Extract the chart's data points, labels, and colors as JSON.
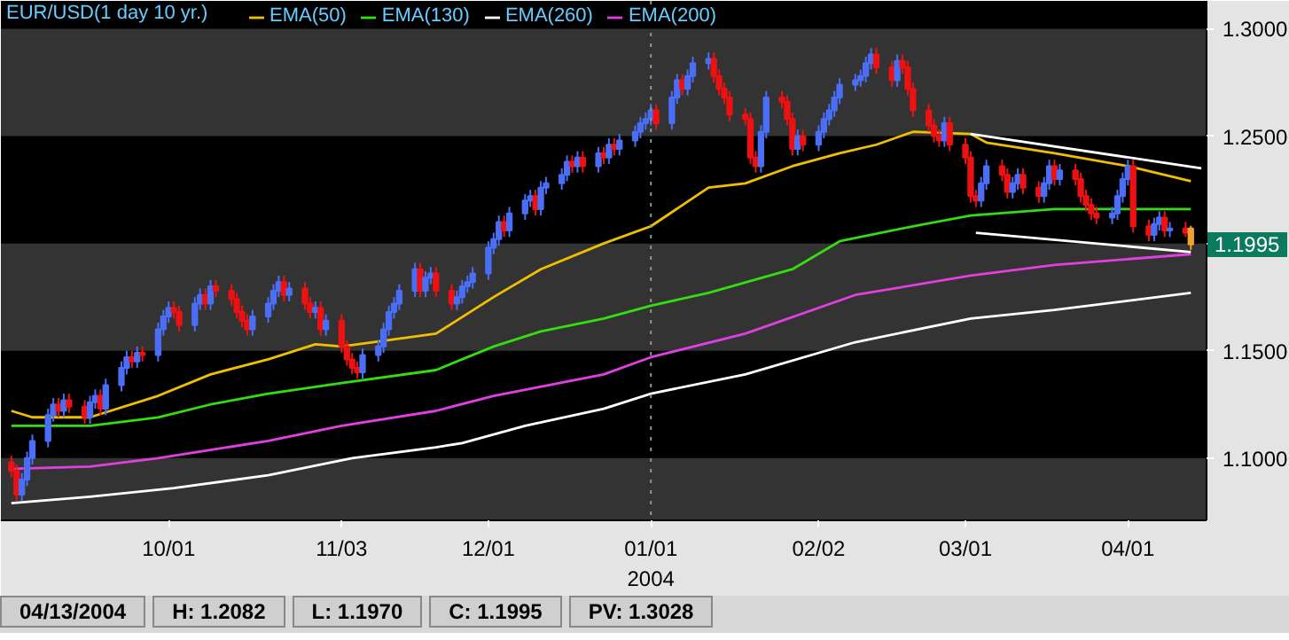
{
  "chart_data": {
    "type": "candlestick",
    "title": "EUR/USD(1 day  10 yr.)",
    "legend": "top left",
    "bands": [
      {
        "axis": "y",
        "from": 1.071,
        "to": 1.1,
        "color": "#333333"
      },
      {
        "axis": "y",
        "from": 1.15,
        "to": 1.2,
        "color": "#333333"
      },
      {
        "axis": "y",
        "from": 1.25,
        "to": 1.3,
        "color": "#333333"
      }
    ],
    "x": [
      "2003-09-01",
      "2003-09-02",
      "2003-09-03",
      "2003-09-04",
      "2003-09-05",
      "2003-09-08",
      "2003-09-09",
      "2003-09-10",
      "2003-09-11",
      "2003-09-12",
      "2003-09-15",
      "2003-09-16",
      "2003-09-17",
      "2003-09-18",
      "2003-09-19",
      "2003-09-22",
      "2003-09-23",
      "2003-09-24",
      "2003-09-25",
      "2003-09-26",
      "2003-09-29",
      "2003-09-30",
      "2003-10-01",
      "2003-10-02",
      "2003-10-03",
      "2003-10-06",
      "2003-10-07",
      "2003-10-08",
      "2003-10-09",
      "2003-10-10",
      "2003-10-13",
      "2003-10-14",
      "2003-10-15",
      "2003-10-16",
      "2003-10-17",
      "2003-10-20",
      "2003-10-21",
      "2003-10-22",
      "2003-10-23",
      "2003-10-24",
      "2003-10-27",
      "2003-10-28",
      "2003-10-29",
      "2003-10-30",
      "2003-10-31",
      "2003-11-03",
      "2003-11-04",
      "2003-11-05",
      "2003-11-06",
      "2003-11-07",
      "2003-11-10",
      "2003-11-11",
      "2003-11-12",
      "2003-11-13",
      "2003-11-14",
      "2003-11-17",
      "2003-11-18",
      "2003-11-19",
      "2003-11-20",
      "2003-11-21",
      "2003-11-24",
      "2003-11-25",
      "2003-11-26",
      "2003-11-27",
      "2003-11-28",
      "2003-12-01",
      "2003-12-02",
      "2003-12-03",
      "2003-12-04",
      "2003-12-05",
      "2003-12-08",
      "2003-12-09",
      "2003-12-10",
      "2003-12-11",
      "2003-12-12",
      "2003-12-15",
      "2003-12-16",
      "2003-12-17",
      "2003-12-18",
      "2003-12-19",
      "2003-12-22",
      "2003-12-23",
      "2003-12-24",
      "2003-12-25",
      "2003-12-26",
      "2003-12-29",
      "2003-12-30",
      "2003-12-31",
      "2004-01-01",
      "2004-01-02",
      "2004-01-05",
      "2004-01-06",
      "2004-01-07",
      "2004-01-08",
      "2004-01-09",
      "2004-01-12",
      "2004-01-13",
      "2004-01-14",
      "2004-01-15",
      "2004-01-16",
      "2004-01-19",
      "2004-01-20",
      "2004-01-21",
      "2004-01-22",
      "2004-01-23",
      "2004-01-26",
      "2004-01-27",
      "2004-01-28",
      "2004-01-29",
      "2004-01-30",
      "2004-02-02",
      "2004-02-03",
      "2004-02-04",
      "2004-02-05",
      "2004-02-06",
      "2004-02-09",
      "2004-02-10",
      "2004-02-11",
      "2004-02-12",
      "2004-02-13",
      "2004-02-16",
      "2004-02-17",
      "2004-02-18",
      "2004-02-19",
      "2004-02-20",
      "2004-02-23",
      "2004-02-24",
      "2004-02-25",
      "2004-02-26",
      "2004-02-27",
      "2004-03-01",
      "2004-03-02",
      "2004-03-03",
      "2004-03-04",
      "2004-03-05",
      "2004-03-08",
      "2004-03-09",
      "2004-03-10",
      "2004-03-11",
      "2004-03-12",
      "2004-03-15",
      "2004-03-16",
      "2004-03-17",
      "2004-03-18",
      "2004-03-19",
      "2004-03-22",
      "2004-03-23",
      "2004-03-24",
      "2004-03-25",
      "2004-03-26",
      "2004-03-29",
      "2004-03-30",
      "2004-03-31",
      "2004-04-01",
      "2004-04-02",
      "2004-04-05",
      "2004-04-06",
      "2004-04-07",
      "2004-04-08",
      "2004-04-09",
      "2004-04-12",
      "2004-04-13"
    ],
    "ohlc": [
      [
        1.098,
        1.101,
        1.091,
        1.094
      ],
      [
        1.094,
        1.097,
        1.08,
        1.083
      ],
      [
        1.083,
        1.093,
        1.08,
        1.09
      ],
      [
        1.09,
        1.103,
        1.087,
        1.1
      ],
      [
        1.1,
        1.111,
        1.097,
        1.108
      ],
      [
        1.108,
        1.123,
        1.105,
        1.12
      ],
      [
        1.12,
        1.128,
        1.117,
        1.125
      ],
      [
        1.125,
        1.128,
        1.119,
        1.122
      ],
      [
        1.122,
        1.13,
        1.119,
        1.127
      ],
      [
        1.127,
        1.13,
        1.121,
        1.124
      ],
      [
        1.124,
        1.127,
        1.116,
        1.119
      ],
      [
        1.119,
        1.129,
        1.116,
        1.126
      ],
      [
        1.126,
        1.132,
        1.123,
        1.129
      ],
      [
        1.129,
        1.132,
        1.12,
        1.123
      ],
      [
        1.123,
        1.137,
        1.12,
        1.134
      ],
      [
        1.134,
        1.145,
        1.131,
        1.142
      ],
      [
        1.142,
        1.15,
        1.139,
        1.147
      ],
      [
        1.147,
        1.15,
        1.142,
        1.145
      ],
      [
        1.145,
        1.152,
        1.142,
        1.149
      ],
      [
        1.149,
        1.152,
        1.145,
        1.148
      ],
      [
        1.148,
        1.163,
        1.145,
        1.16
      ],
      [
        1.16,
        1.169,
        1.157,
        1.166
      ],
      [
        1.166,
        1.173,
        1.163,
        1.17
      ],
      [
        1.17,
        1.173,
        1.165,
        1.168
      ],
      [
        1.168,
        1.171,
        1.159,
        1.162
      ],
      [
        1.162,
        1.175,
        1.159,
        1.172
      ],
      [
        1.172,
        1.179,
        1.169,
        1.176
      ],
      [
        1.176,
        1.179,
        1.169,
        1.172
      ],
      [
        1.172,
        1.183,
        1.169,
        1.18
      ],
      [
        1.18,
        1.183,
        1.175,
        1.178
      ],
      [
        1.178,
        1.181,
        1.171,
        1.174
      ],
      [
        1.174,
        1.177,
        1.165,
        1.168
      ],
      [
        1.168,
        1.171,
        1.161,
        1.164
      ],
      [
        1.164,
        1.167,
        1.157,
        1.16
      ],
      [
        1.16,
        1.169,
        1.157,
        1.166
      ],
      [
        1.166,
        1.175,
        1.163,
        1.172
      ],
      [
        1.172,
        1.181,
        1.169,
        1.178
      ],
      [
        1.178,
        1.185,
        1.175,
        1.182
      ],
      [
        1.182,
        1.185,
        1.173,
        1.176
      ],
      [
        1.176,
        1.182,
        1.173,
        1.179
      ],
      [
        1.179,
        1.182,
        1.169,
        1.172
      ],
      [
        1.172,
        1.175,
        1.165,
        1.168
      ],
      [
        1.168,
        1.173,
        1.165,
        1.17
      ],
      [
        1.17,
        1.173,
        1.157,
        1.16
      ],
      [
        1.16,
        1.167,
        1.157,
        1.164
      ],
      [
        1.164,
        1.167,
        1.149,
        1.152
      ],
      [
        1.152,
        1.155,
        1.143,
        1.146
      ],
      [
        1.146,
        1.149,
        1.139,
        1.142
      ],
      [
        1.142,
        1.145,
        1.137,
        1.14
      ],
      [
        1.14,
        1.151,
        1.137,
        1.148
      ],
      [
        1.148,
        1.155,
        1.145,
        1.152
      ],
      [
        1.152,
        1.163,
        1.149,
        1.16
      ],
      [
        1.16,
        1.171,
        1.157,
        1.168
      ],
      [
        1.168,
        1.175,
        1.165,
        1.172
      ],
      [
        1.172,
        1.181,
        1.169,
        1.178
      ],
      [
        1.178,
        1.191,
        1.175,
        1.188
      ],
      [
        1.188,
        1.191,
        1.175,
        1.178
      ],
      [
        1.178,
        1.187,
        1.175,
        1.184
      ],
      [
        1.184,
        1.189,
        1.181,
        1.186
      ],
      [
        1.186,
        1.189,
        1.175,
        1.178
      ],
      [
        1.178,
        1.181,
        1.169,
        1.172
      ],
      [
        1.172,
        1.178,
        1.169,
        1.175
      ],
      [
        1.175,
        1.183,
        1.172,
        1.18
      ],
      [
        1.18,
        1.185,
        1.177,
        1.182
      ],
      [
        1.182,
        1.189,
        1.179,
        1.186
      ],
      [
        1.186,
        1.201,
        1.183,
        1.198
      ],
      [
        1.198,
        1.205,
        1.195,
        1.202
      ],
      [
        1.202,
        1.213,
        1.199,
        1.21
      ],
      [
        1.21,
        1.213,
        1.203,
        1.206
      ],
      [
        1.206,
        1.217,
        1.203,
        1.214
      ],
      [
        1.214,
        1.223,
        1.211,
        1.22
      ],
      [
        1.22,
        1.225,
        1.217,
        1.222
      ],
      [
        1.222,
        1.225,
        1.213,
        1.216
      ],
      [
        1.216,
        1.229,
        1.213,
        1.226
      ],
      [
        1.226,
        1.231,
        1.223,
        1.228
      ],
      [
        1.228,
        1.235,
        1.225,
        1.232
      ],
      [
        1.232,
        1.241,
        1.229,
        1.238
      ],
      [
        1.238,
        1.241,
        1.233,
        1.236
      ],
      [
        1.236,
        1.243,
        1.233,
        1.24
      ],
      [
        1.24,
        1.243,
        1.233,
        1.236
      ],
      [
        1.236,
        1.245,
        1.233,
        1.242
      ],
      [
        1.242,
        1.245,
        1.237,
        1.24
      ],
      [
        1.24,
        1.249,
        1.237,
        1.246
      ],
      [
        1.246,
        1.249,
        1.241,
        1.244
      ],
      [
        1.244,
        1.251,
        1.241,
        1.248
      ],
      [
        1.248,
        1.255,
        1.245,
        1.252
      ],
      [
        1.252,
        1.259,
        1.249,
        1.256
      ],
      [
        1.256,
        1.261,
        1.253,
        1.258
      ],
      [
        1.258,
        1.265,
        1.255,
        1.262
      ],
      [
        1.262,
        1.265,
        1.253,
        1.256
      ],
      [
        1.256,
        1.271,
        1.253,
        1.268
      ],
      [
        1.268,
        1.279,
        1.265,
        1.276
      ],
      [
        1.276,
        1.279,
        1.269,
        1.272
      ],
      [
        1.272,
        1.281,
        1.269,
        1.278
      ],
      [
        1.278,
        1.287,
        1.275,
        1.284
      ],
      [
        1.284,
        1.289,
        1.281,
        1.286
      ],
      [
        1.286,
        1.289,
        1.275,
        1.278
      ],
      [
        1.278,
        1.281,
        1.269,
        1.272
      ],
      [
        1.272,
        1.275,
        1.265,
        1.268
      ],
      [
        1.268,
        1.271,
        1.257,
        1.26
      ],
      [
        1.26,
        1.263,
        1.255,
        1.258
      ],
      [
        1.258,
        1.261,
        1.237,
        1.24
      ],
      [
        1.24,
        1.243,
        1.233,
        1.236
      ],
      [
        1.236,
        1.255,
        1.233,
        1.252
      ],
      [
        1.252,
        1.271,
        1.249,
        1.268
      ],
      [
        1.268,
        1.271,
        1.263,
        1.266
      ],
      [
        1.266,
        1.269,
        1.255,
        1.258
      ],
      [
        1.258,
        1.261,
        1.241,
        1.244
      ],
      [
        1.244,
        1.253,
        1.241,
        1.25
      ],
      [
        1.25,
        1.253,
        1.243,
        1.246
      ],
      [
        1.246,
        1.255,
        1.243,
        1.252
      ],
      [
        1.252,
        1.261,
        1.249,
        1.258
      ],
      [
        1.258,
        1.265,
        1.255,
        1.262
      ],
      [
        1.262,
        1.271,
        1.259,
        1.268
      ],
      [
        1.268,
        1.277,
        1.265,
        1.274
      ],
      [
        1.274,
        1.279,
        1.271,
        1.276
      ],
      [
        1.276,
        1.281,
        1.273,
        1.278
      ],
      [
        1.278,
        1.287,
        1.275,
        1.284
      ],
      [
        1.284,
        1.291,
        1.281,
        1.288
      ],
      [
        1.288,
        1.291,
        1.279,
        1.282
      ],
      [
        1.282,
        1.285,
        1.273,
        1.276
      ],
      [
        1.276,
        1.288,
        1.273,
        1.285
      ],
      [
        1.285,
        1.288,
        1.279,
        1.282
      ],
      [
        1.282,
        1.285,
        1.269,
        1.272
      ],
      [
        1.272,
        1.275,
        1.259,
        1.262
      ],
      [
        1.262,
        1.265,
        1.252,
        1.255
      ],
      [
        1.255,
        1.258,
        1.247,
        1.25
      ],
      [
        1.25,
        1.253,
        1.245,
        1.248
      ],
      [
        1.248,
        1.259,
        1.245,
        1.256
      ],
      [
        1.256,
        1.259,
        1.243,
        1.246
      ],
      [
        1.246,
        1.249,
        1.237,
        1.24
      ],
      [
        1.24,
        1.243,
        1.219,
        1.222
      ],
      [
        1.222,
        1.225,
        1.217,
        1.22
      ],
      [
        1.22,
        1.231,
        1.217,
        1.228
      ],
      [
        1.228,
        1.239,
        1.225,
        1.236
      ],
      [
        1.236,
        1.239,
        1.229,
        1.232
      ],
      [
        1.232,
        1.235,
        1.221,
        1.224
      ],
      [
        1.224,
        1.231,
        1.221,
        1.228
      ],
      [
        1.228,
        1.235,
        1.225,
        1.232
      ],
      [
        1.232,
        1.235,
        1.223,
        1.226
      ],
      [
        1.226,
        1.229,
        1.219,
        1.222
      ],
      [
        1.222,
        1.231,
        1.219,
        1.228
      ],
      [
        1.228,
        1.239,
        1.225,
        1.236
      ],
      [
        1.236,
        1.239,
        1.227,
        1.23
      ],
      [
        1.23,
        1.237,
        1.227,
        1.234
      ],
      [
        1.234,
        1.237,
        1.227,
        1.23
      ],
      [
        1.23,
        1.233,
        1.219,
        1.222
      ],
      [
        1.222,
        1.225,
        1.215,
        1.218
      ],
      [
        1.218,
        1.221,
        1.211,
        1.214
      ],
      [
        1.214,
        1.217,
        1.209,
        1.212
      ],
      [
        1.212,
        1.217,
        1.209,
        1.214
      ],
      [
        1.214,
        1.225,
        1.211,
        1.222
      ],
      [
        1.222,
        1.233,
        1.219,
        1.23
      ],
      [
        1.23,
        1.239,
        1.227,
        1.236
      ],
      [
        1.236,
        1.239,
        1.205,
        1.208
      ],
      [
        1.208,
        1.211,
        1.201,
        1.204
      ],
      [
        1.204,
        1.212,
        1.201,
        1.209
      ],
      [
        1.209,
        1.215,
        1.206,
        1.212
      ],
      [
        1.212,
        1.215,
        1.203,
        1.206
      ],
      [
        1.206,
        1.21,
        1.203,
        1.207
      ],
      [
        1.207,
        1.21,
        1.203,
        1.205
      ],
      [
        1.207,
        1.2082,
        1.197,
        1.1995
      ]
    ],
    "colors": [
      "#ee1111",
      "#ee1111",
      "#4a6ef5",
      "#4a6ef5",
      "#4a6ef5",
      "#4a6ef5",
      "#4a6ef5",
      "#ee1111",
      "#4a6ef5",
      "#ee1111",
      "#ee1111",
      "#4a6ef5",
      "#4a6ef5",
      "#ee1111",
      "#4a6ef5",
      "#4a6ef5",
      "#4a6ef5",
      "#ee1111",
      "#4a6ef5",
      "#ee1111",
      "#4a6ef5",
      "#4a6ef5",
      "#4a6ef5",
      "#ee1111",
      "#ee1111",
      "#4a6ef5",
      "#4a6ef5",
      "#ee1111",
      "#4a6ef5",
      "#ee1111",
      "#ee1111",
      "#ee1111",
      "#ee1111",
      "#ee1111",
      "#4a6ef5",
      "#4a6ef5",
      "#4a6ef5",
      "#4a6ef5",
      "#ee1111",
      "#4a6ef5",
      "#ee1111",
      "#ee1111",
      "#4a6ef5",
      "#ee1111",
      "#4a6ef5",
      "#ee1111",
      "#ee1111",
      "#ee1111",
      "#ee1111",
      "#4a6ef5",
      "#4a6ef5",
      "#4a6ef5",
      "#4a6ef5",
      "#4a6ef5",
      "#4a6ef5",
      "#4a6ef5",
      "#ee1111",
      "#4a6ef5",
      "#4a6ef5",
      "#ee1111",
      "#ee1111",
      "#4a6ef5",
      "#4a6ef5",
      "#4a6ef5",
      "#4a6ef5",
      "#4a6ef5",
      "#4a6ef5",
      "#4a6ef5",
      "#ee1111",
      "#4a6ef5",
      "#4a6ef5",
      "#4a6ef5",
      "#ee1111",
      "#4a6ef5",
      "#4a6ef5",
      "#4a6ef5",
      "#4a6ef5",
      "#ee1111",
      "#4a6ef5",
      "#ee1111",
      "#4a6ef5",
      "#ee1111",
      "#4a6ef5",
      "#ee1111",
      "#4a6ef5",
      "#4a6ef5",
      "#4a6ef5",
      "#4a6ef5",
      "#4a6ef5",
      "#ee1111",
      "#4a6ef5",
      "#4a6ef5",
      "#ee1111",
      "#4a6ef5",
      "#4a6ef5",
      "#4a6ef5",
      "#ee1111",
      "#ee1111",
      "#ee1111",
      "#ee1111",
      "#ee1111",
      "#ee1111",
      "#ee1111",
      "#4a6ef5",
      "#4a6ef5",
      "#ee1111",
      "#ee1111",
      "#ee1111",
      "#4a6ef5",
      "#ee1111",
      "#4a6ef5",
      "#4a6ef5",
      "#4a6ef5",
      "#4a6ef5",
      "#4a6ef5",
      "#4a6ef5",
      "#4a6ef5",
      "#4a6ef5",
      "#4a6ef5",
      "#ee1111",
      "#ee1111",
      "#4a6ef5",
      "#ee1111",
      "#ee1111",
      "#ee1111",
      "#ee1111",
      "#ee1111",
      "#ee1111",
      "#4a6ef5",
      "#ee1111",
      "#ee1111",
      "#ee1111",
      "#ee1111",
      "#4a6ef5",
      "#4a6ef5",
      "#ee1111",
      "#ee1111",
      "#4a6ef5",
      "#4a6ef5",
      "#ee1111",
      "#ee1111",
      "#4a6ef5",
      "#4a6ef5",
      "#ee1111",
      "#4a6ef5",
      "#ee1111",
      "#ee1111",
      "#ee1111",
      "#ee1111",
      "#ee1111",
      "#4a6ef5",
      "#4a6ef5",
      "#4a6ef5",
      "#4a6ef5",
      "#ee1111",
      "#ee1111",
      "#4a6ef5",
      "#4a6ef5",
      "#ee1111",
      "#4a6ef5",
      "#ee1111",
      "#f0a030"
    ],
    "series": [
      {
        "name": "EMA(50)",
        "type": "line",
        "color": "#f0c000",
        "x": [
          "2003-09-01",
          "2003-09-05",
          "2003-09-16",
          "2003-09-29",
          "2003-10-09",
          "2003-10-20",
          "2003-10-29",
          "2003-11-03",
          "2003-11-12",
          "2003-11-21",
          "2003-12-02",
          "2003-12-11",
          "2003-12-23",
          "2004-01-01",
          "2004-01-12",
          "2004-01-19",
          "2004-01-28",
          "2004-02-06",
          "2004-02-13",
          "2004-02-20",
          "2004-03-02",
          "2004-03-05",
          "2004-03-18",
          "2004-04-01",
          "2004-04-13"
        ],
        "values": [
          1.122,
          1.119,
          1.119,
          1.129,
          1.139,
          1.146,
          1.153,
          1.152,
          1.155,
          1.158,
          1.175,
          1.188,
          1.2,
          1.208,
          1.226,
          1.228,
          1.236,
          1.242,
          1.246,
          1.252,
          1.251,
          1.247,
          1.242,
          1.236,
          1.229
        ]
      },
      {
        "name": "EMA(130)",
        "type": "line",
        "color": "#33dd11",
        "x": [
          "2003-09-01",
          "2003-09-08",
          "2003-09-16",
          "2003-09-29",
          "2003-10-09",
          "2003-10-20",
          "2003-11-03",
          "2003-11-21",
          "2003-12-02",
          "2003-12-11",
          "2003-12-23",
          "2004-01-01",
          "2004-01-12",
          "2004-01-28",
          "2004-02-06",
          "2004-02-20",
          "2004-03-02",
          "2004-03-18",
          "2004-04-13"
        ],
        "values": [
          1.115,
          1.115,
          1.115,
          1.119,
          1.125,
          1.13,
          1.135,
          1.141,
          1.152,
          1.159,
          1.165,
          1.171,
          1.177,
          1.188,
          1.201,
          1.208,
          1.213,
          1.216,
          1.216
        ]
      },
      {
        "name": "EMA(260)",
        "type": "line",
        "color": "#ffffff",
        "x": [
          "2003-09-01",
          "2003-09-16",
          "2003-10-02",
          "2003-10-20",
          "2003-11-05",
          "2003-11-21",
          "2003-11-26",
          "2003-12-08",
          "2003-12-23",
          "2004-01-01",
          "2004-01-19",
          "2004-02-09",
          "2004-03-02",
          "2004-03-18",
          "2004-04-13"
        ],
        "values": [
          1.079,
          1.082,
          1.086,
          1.092,
          1.1,
          1.105,
          1.107,
          1.115,
          1.123,
          1.13,
          1.139,
          1.154,
          1.165,
          1.169,
          1.177
        ]
      },
      {
        "name": "EMA(200)",
        "type": "line",
        "color": "#e040e0",
        "x": [
          "2003-09-01",
          "2003-09-16",
          "2003-09-29",
          "2003-10-20",
          "2003-11-03",
          "2003-11-21",
          "2003-12-02",
          "2003-12-23",
          "2004-01-01",
          "2004-01-19",
          "2004-02-09",
          "2004-03-02",
          "2004-03-18",
          "2004-04-13"
        ],
        "values": [
          1.095,
          1.096,
          1.1,
          1.108,
          1.115,
          1.122,
          1.129,
          1.139,
          1.147,
          1.158,
          1.176,
          1.185,
          1.19,
          1.195
        ]
      },
      {
        "type": "line",
        "color": "#ffffff",
        "x": [
          "2004-03-02",
          "2004-04-15"
        ],
        "values": [
          1.251,
          1.235
        ]
      },
      {
        "type": "line",
        "color": "#ffffff",
        "x": [
          "2004-03-03",
          "2004-04-13"
        ],
        "values": [
          1.205,
          1.196
        ]
      }
    ],
    "xlim": [
      "2003-08-30",
      "2004-04-16"
    ],
    "xticks": [
      {
        "value": "2003-10-01",
        "label": "10/01"
      },
      {
        "value": "2003-11-03",
        "label": "11/03"
      },
      {
        "value": "2003-12-01",
        "label": "12/01"
      },
      {
        "value": "2004-01-01",
        "label": "01/01\n2004"
      },
      {
        "value": "2004-02-02",
        "label": "02/02"
      },
      {
        "value": "2004-03-01",
        "label": "03/01"
      },
      {
        "value": "2004-04-01",
        "label": "04/01"
      }
    ],
    "ylim": [
      1.071,
      1.313
    ],
    "yticks": [
      {
        "value": 1.1,
        "label": "1.1000"
      },
      {
        "value": 1.15,
        "label": "1.1500"
      },
      {
        "value": 1.2,
        "label": null
      },
      {
        "value": 1.25,
        "label": "1.2500"
      },
      {
        "value": 1.3,
        "label": "1.3000"
      }
    ],
    "ref_lines": [
      {
        "axis": "x",
        "value": "2004-01-01",
        "color": "#8a9a8a",
        "line_style": "dotted"
      }
    ],
    "annotations": [
      "1.1995",
      "04/13/2004",
      "H: 1.2082",
      "L: 1.1970",
      "C: 1.1995",
      "PV: 1.3028"
    ]
  }
}
